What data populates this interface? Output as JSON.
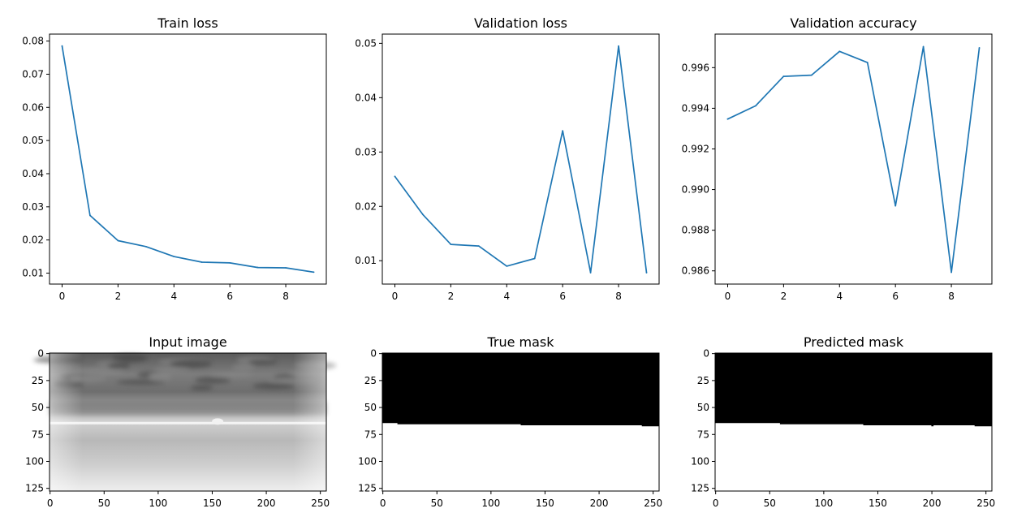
{
  "colors": {
    "line": "#1f77b4",
    "axis": "#000000",
    "background": "#ffffff"
  },
  "chart_data": [
    {
      "type": "line",
      "title": "Train loss",
      "xlabel": "",
      "ylabel": "",
      "xlim": [
        -0.45,
        9.45
      ],
      "ylim": [
        0.0067,
        0.0821
      ],
      "xticks": [
        0,
        2,
        4,
        6,
        8
      ],
      "yticks": [
        0.01,
        0.02,
        0.03,
        0.04,
        0.05,
        0.06,
        0.07,
        0.08
      ],
      "xtick_labels": [
        "0",
        "2",
        "4",
        "6",
        "8"
      ],
      "ytick_labels": [
        "0.01",
        "0.02",
        "0.03",
        "0.04",
        "0.05",
        "0.06",
        "0.07",
        "0.08"
      ],
      "grid": false,
      "legend": "none",
      "x": [
        0,
        1,
        2,
        3,
        4,
        5,
        6,
        7,
        8,
        9
      ],
      "series": [
        {
          "values": [
            0.0785,
            0.0274,
            0.0198,
            0.018,
            0.015,
            0.0133,
            0.0131,
            0.0117,
            0.0116,
            0.0103
          ]
        }
      ]
    },
    {
      "type": "line",
      "title": "Validation loss",
      "xlabel": "",
      "ylabel": "",
      "xlim": [
        -0.45,
        9.45
      ],
      "ylim": [
        0.0057,
        0.0517
      ],
      "xticks": [
        0,
        2,
        4,
        6,
        8
      ],
      "yticks": [
        0.01,
        0.02,
        0.03,
        0.04,
        0.05
      ],
      "xtick_labels": [
        "0",
        "2",
        "4",
        "6",
        "8"
      ],
      "ytick_labels": [
        "0.01",
        "0.02",
        "0.03",
        "0.04",
        "0.05"
      ],
      "grid": false,
      "legend": "none",
      "x": [
        0,
        1,
        2,
        3,
        4,
        5,
        6,
        7,
        8,
        9
      ],
      "series": [
        {
          "values": [
            0.0255,
            0.0185,
            0.013,
            0.0127,
            0.009,
            0.0104,
            0.0339,
            0.0078,
            0.0495,
            0.0078
          ]
        }
      ]
    },
    {
      "type": "line",
      "title": "Validation accuracy",
      "xlabel": "",
      "ylabel": "",
      "xlim": [
        -0.45,
        9.45
      ],
      "ylim": [
        0.98535,
        0.99765
      ],
      "xticks": [
        0,
        2,
        4,
        6,
        8
      ],
      "yticks": [
        0.986,
        0.988,
        0.99,
        0.992,
        0.994,
        0.996
      ],
      "xtick_labels": [
        "0",
        "2",
        "4",
        "6",
        "8"
      ],
      "ytick_labels": [
        "0.986",
        "0.988",
        "0.990",
        "0.992",
        "0.994",
        "0.996"
      ],
      "grid": false,
      "legend": "none",
      "x": [
        0,
        1,
        2,
        3,
        4,
        5,
        6,
        7,
        8,
        9
      ],
      "series": [
        {
          "values": [
            0.99347,
            0.99412,
            0.99557,
            0.99563,
            0.9968,
            0.99625,
            0.9892,
            0.99703,
            0.98593,
            0.99697
          ]
        }
      ]
    },
    {
      "type": "heatmap",
      "title": "Input image",
      "image": "grayscale",
      "xlim": [
        -0.5,
        255.5
      ],
      "ylim": [
        127.5,
        -0.5
      ],
      "xticks": [
        0,
        50,
        100,
        150,
        200,
        250
      ],
      "yticks": [
        0,
        25,
        50,
        75,
        100,
        125
      ],
      "xtick_labels": [
        "0",
        "50",
        "100",
        "150",
        "200",
        "250"
      ],
      "ytick_labels": [
        "0",
        "25",
        "50",
        "75",
        "100",
        "125"
      ],
      "horizon_row": 65
    },
    {
      "type": "heatmap",
      "title": "True mask",
      "image": "binary mask",
      "xlim": [
        -0.5,
        255.5
      ],
      "ylim": [
        127.5,
        -0.5
      ],
      "xticks": [
        0,
        50,
        100,
        150,
        200,
        250
      ],
      "yticks": [
        0,
        25,
        50,
        75,
        100,
        125
      ],
      "xtick_labels": [
        "0",
        "50",
        "100",
        "150",
        "200",
        "250"
      ],
      "ytick_labels": [
        "0",
        "25",
        "50",
        "75",
        "100",
        "125"
      ],
      "boundary": [
        [
          0,
          65
        ],
        [
          14,
          65
        ],
        [
          14,
          66
        ],
        [
          128,
          66
        ],
        [
          128,
          67
        ],
        [
          240,
          67
        ],
        [
          240,
          68
        ],
        [
          256,
          68
        ]
      ]
    },
    {
      "type": "heatmap",
      "title": "Predicted mask",
      "image": "binary mask",
      "xlim": [
        -0.5,
        255.5
      ],
      "ylim": [
        127.5,
        -0.5
      ],
      "xticks": [
        0,
        50,
        100,
        150,
        200,
        250
      ],
      "yticks": [
        0,
        25,
        50,
        75,
        100,
        125
      ],
      "xtick_labels": [
        "0",
        "50",
        "100",
        "150",
        "200",
        "250"
      ],
      "ytick_labels": [
        "0",
        "25",
        "50",
        "75",
        "100",
        "125"
      ],
      "boundary": [
        [
          0,
          65
        ],
        [
          60,
          65
        ],
        [
          60,
          66
        ],
        [
          137,
          66
        ],
        [
          137,
          67
        ],
        [
          200,
          67
        ],
        [
          200,
          68
        ],
        [
          202,
          68
        ],
        [
          202,
          67
        ],
        [
          240,
          67
        ],
        [
          240,
          68
        ],
        [
          256,
          68
        ]
      ]
    }
  ]
}
